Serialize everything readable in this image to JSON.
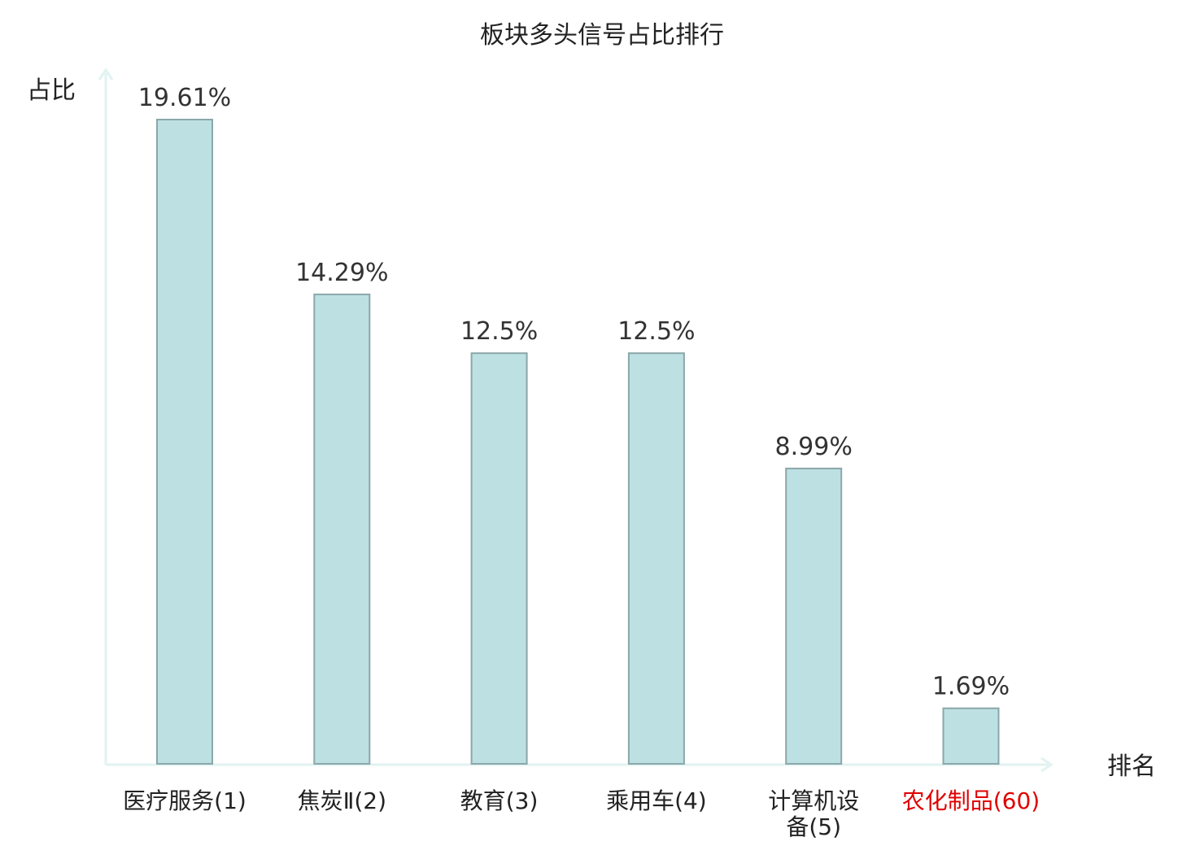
{
  "chart_data": {
    "type": "bar",
    "title": "板块多头信号占比排行",
    "ylabel": "占比",
    "xlabel": "排名",
    "categories": [
      "医疗服务(1)",
      "焦炭Ⅱ(2)",
      "教育(3)",
      "乘用车(4)",
      "计算机设备(5)",
      "农化制品(60)"
    ],
    "category_lines": [
      [
        "医疗服务(1)"
      ],
      [
        "焦炭Ⅱ(2)"
      ],
      [
        "教育(3)"
      ],
      [
        "乘用车(4)"
      ],
      [
        "计算机设",
        "备(5)"
      ],
      [
        "农化制品(60)"
      ]
    ],
    "values": [
      19.61,
      14.29,
      12.5,
      12.5,
      8.99,
      1.69
    ],
    "value_labels": [
      "19.61%",
      "14.29%",
      "12.5%",
      "12.5%",
      "8.99%",
      "1.69%"
    ],
    "highlight_index": 5,
    "ylim": [
      0,
      19.61
    ],
    "grid": false,
    "colors": {
      "bar_fill": "#bde0e3",
      "bar_stroke": "#8ba7aa",
      "axis": "#e0f3f1",
      "label": "#222222",
      "highlight_label": "#e00000"
    }
  }
}
